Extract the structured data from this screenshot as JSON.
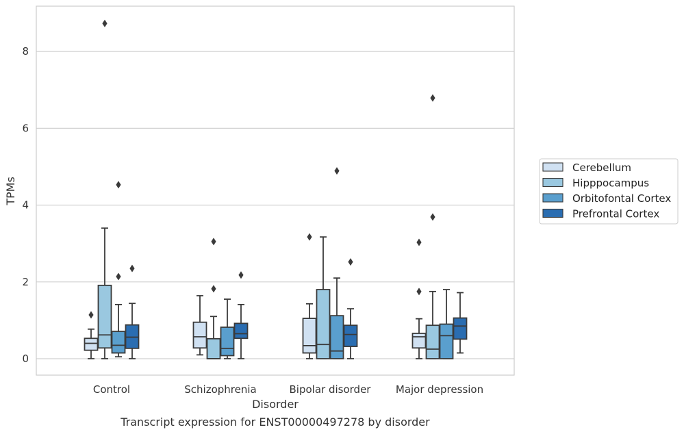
{
  "chart_data": {
    "type": "box",
    "title": "Transcript expression for ENST00000497278 by disorder",
    "xlabel": "Disorder",
    "ylabel": "TPMs",
    "ylim": [
      -0.42,
      9.3
    ],
    "yticks": [
      0,
      2,
      4,
      6,
      8
    ],
    "grid": "horizontal",
    "legend_position": "right",
    "categories": [
      "Control",
      "Schizophrenia",
      "Bipolar disorder",
      "Major depression"
    ],
    "series": [
      {
        "name": "Cerebellum",
        "color": "#d0e1f2",
        "boxes": [
          {
            "whisker_low": 0.0,
            "q1": 0.22,
            "median": 0.4,
            "q3": 0.53,
            "whisker_high": 0.77,
            "outliers": [
              1.14
            ]
          },
          {
            "whisker_low": 0.1,
            "q1": 0.28,
            "median": 0.57,
            "q3": 0.95,
            "whisker_high": 1.64,
            "outliers": []
          },
          {
            "whisker_low": 0.0,
            "q1": 0.15,
            "median": 0.34,
            "q3": 1.05,
            "whisker_high": 1.43,
            "outliers": [
              3.17
            ]
          },
          {
            "whisker_low": 0.0,
            "q1": 0.28,
            "median": 0.57,
            "q3": 0.66,
            "whisker_high": 1.04,
            "outliers": [
              1.75,
              3.03
            ]
          }
        ]
      },
      {
        "name": "Hipppocampus",
        "color": "#9ac8e0",
        "boxes": [
          {
            "whisker_low": 0.0,
            "q1": 0.28,
            "median": 0.62,
            "q3": 1.91,
            "whisker_high": 3.4,
            "outliers": [
              8.73
            ]
          },
          {
            "whisker_low": 0.0,
            "q1": 0.0,
            "median": 0.0,
            "q3": 0.52,
            "whisker_high": 1.1,
            "outliers": [
              1.82,
              3.05
            ]
          },
          {
            "whisker_low": 0.0,
            "q1": 0.0,
            "median": 0.37,
            "q3": 1.8,
            "whisker_high": 3.17,
            "outliers": []
          },
          {
            "whisker_low": 0.0,
            "q1": 0.0,
            "median": 0.25,
            "q3": 0.87,
            "whisker_high": 1.75,
            "outliers": [
              3.69,
              6.79
            ]
          }
        ]
      },
      {
        "name": "Orbitofontal Cortex",
        "color": "#5a9fce",
        "boxes": [
          {
            "whisker_low": 0.05,
            "q1": 0.15,
            "median": 0.35,
            "q3": 0.71,
            "whisker_high": 1.41,
            "outliers": [
              2.14,
              4.53
            ]
          },
          {
            "whisker_low": 0.0,
            "q1": 0.08,
            "median": 0.27,
            "q3": 0.82,
            "whisker_high": 1.55,
            "outliers": []
          },
          {
            "whisker_low": 0.0,
            "q1": 0.0,
            "median": 0.2,
            "q3": 1.12,
            "whisker_high": 2.1,
            "outliers": [
              4.89
            ]
          },
          {
            "whisker_low": 0.0,
            "q1": 0.0,
            "median": 0.6,
            "q3": 0.9,
            "whisker_high": 1.8,
            "outliers": []
          }
        ]
      },
      {
        "name": "Prefrontal Cortex",
        "color": "#2a6db1",
        "boxes": [
          {
            "whisker_low": 0.0,
            "q1": 0.27,
            "median": 0.56,
            "q3": 0.88,
            "whisker_high": 1.44,
            "outliers": [
              2.35
            ]
          },
          {
            "whisker_low": 0.0,
            "q1": 0.53,
            "median": 0.65,
            "q3": 0.92,
            "whisker_high": 1.41,
            "outliers": [
              2.18
            ]
          },
          {
            "whisker_low": 0.0,
            "q1": 0.32,
            "median": 0.63,
            "q3": 0.87,
            "whisker_high": 1.3,
            "outliers": [
              2.52
            ]
          },
          {
            "whisker_low": 0.15,
            "q1": 0.51,
            "median": 0.85,
            "q3": 1.06,
            "whisker_high": 1.72,
            "outliers": []
          }
        ]
      }
    ]
  }
}
